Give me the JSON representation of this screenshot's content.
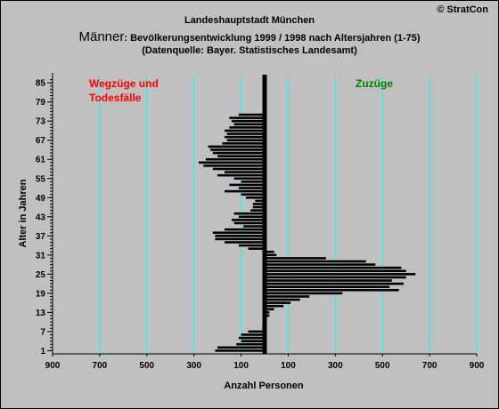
{
  "header": {
    "copyright": "© StratCon",
    "title_line1": "Landeshauptstadt München",
    "title_line2_big": "Männer",
    "title_line2_rest": ": Bevölkerungsentwicklung 1999 / 1998  nach Altersjahren (1-75)",
    "title_line3": "(Datenquelle: Bayer. Statistisches Landesamt)"
  },
  "colors": {
    "background": "#c0c0c0",
    "bars": "#000000",
    "gridlines": "#00ffff",
    "wegzuege_label": "#ff0000",
    "zuzuege_label": "#008000"
  },
  "chart_data": {
    "type": "bar",
    "orientation": "horizontal",
    "xlabel": "Anzahl Personen",
    "ylabel": "Alter in Jahren",
    "xlim": [
      -900,
      900
    ],
    "ylim": [
      0,
      87
    ],
    "x_ticks": [
      -900,
      -700,
      -500,
      -300,
      -100,
      100,
      300,
      500,
      700,
      900
    ],
    "x_tick_labels": [
      "900",
      "700",
      "500",
      "300",
      "100",
      "100",
      "300",
      "500",
      "700",
      "900"
    ],
    "y_ticks": [
      1,
      7,
      13,
      19,
      25,
      31,
      37,
      43,
      49,
      55,
      61,
      67,
      73,
      79,
      85
    ],
    "grid": "vertical",
    "annotations": [
      {
        "text_line1": "Wegzüge und",
        "text_line2": "Todesfälle",
        "side": "negative"
      },
      {
        "text_line1": "Zuzüge",
        "side": "positive"
      }
    ],
    "ages": [
      1,
      2,
      3,
      4,
      5,
      6,
      7,
      8,
      9,
      10,
      11,
      12,
      13,
      14,
      15,
      16,
      17,
      18,
      19,
      20,
      21,
      22,
      23,
      24,
      25,
      26,
      27,
      28,
      29,
      30,
      31,
      32,
      33,
      34,
      35,
      36,
      37,
      38,
      39,
      40,
      41,
      42,
      43,
      44,
      45,
      46,
      47,
      48,
      49,
      50,
      51,
      52,
      53,
      54,
      55,
      56,
      57,
      58,
      59,
      60,
      61,
      62,
      63,
      64,
      65,
      66,
      67,
      68,
      69,
      70,
      71,
      72,
      73,
      74,
      75
    ],
    "values": [
      -210,
      -200,
      -120,
      -100,
      -110,
      -100,
      -70,
      -10,
      -10,
      0,
      0,
      20,
      20,
      40,
      80,
      110,
      150,
      190,
      330,
      570,
      530,
      590,
      540,
      600,
      640,
      600,
      580,
      470,
      430,
      260,
      50,
      40,
      -70,
      -110,
      -170,
      -210,
      -210,
      -220,
      -170,
      -90,
      -130,
      -140,
      -110,
      -130,
      -60,
      -50,
      -50,
      -40,
      -80,
      -100,
      -170,
      -110,
      -150,
      -100,
      -130,
      -200,
      -170,
      -220,
      -260,
      -280,
      -250,
      -200,
      -220,
      -230,
      -240,
      -180,
      -160,
      -170,
      -160,
      -170,
      -150,
      -130,
      -140,
      -150,
      -110
    ]
  }
}
